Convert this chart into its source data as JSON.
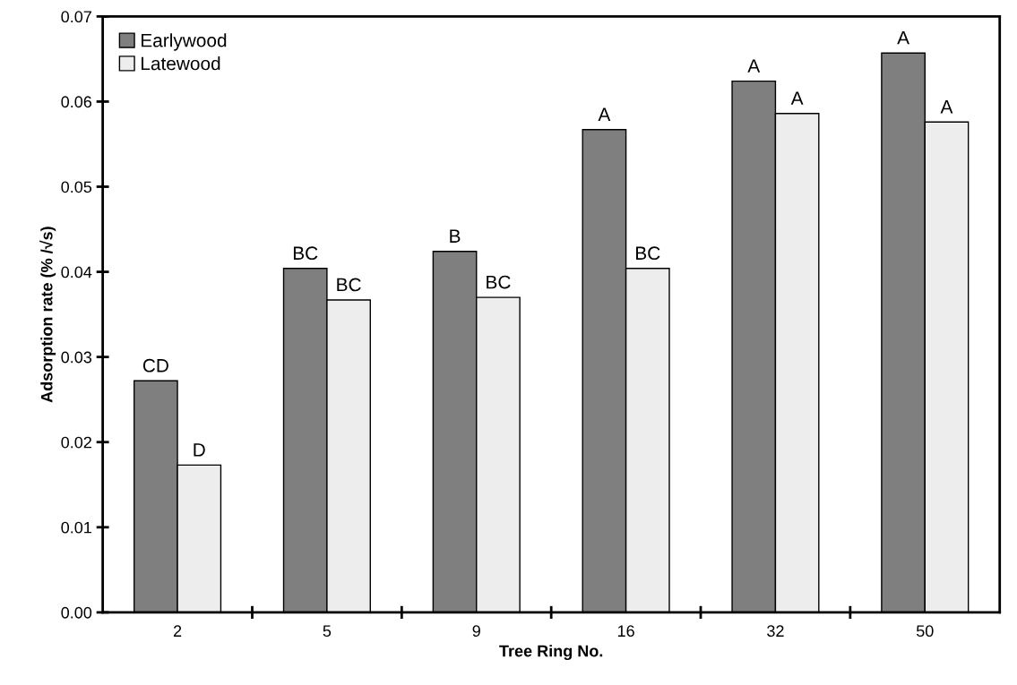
{
  "chart_data": {
    "type": "bar",
    "xlabel": "Tree Ring No.",
    "ylabel": "Adsorption rate (% /√s)",
    "categories": [
      "2",
      "5",
      "9",
      "16",
      "32",
      "50"
    ],
    "series": [
      {
        "name": "Earlywood",
        "color": "#7f7f7f",
        "values": [
          0.0272,
          0.0404,
          0.0424,
          0.0567,
          0.0624,
          0.0657
        ]
      },
      {
        "name": "Latewood",
        "color": "#ededed",
        "values": [
          0.0173,
          0.0367,
          0.037,
          0.0404,
          0.0586,
          0.0576
        ]
      }
    ],
    "ylim": [
      0,
      0.07
    ],
    "yticks": [
      {
        "value": 0,
        "label": "0.00"
      },
      {
        "value": 0.01,
        "label": "0.01"
      },
      {
        "value": 0.02,
        "label": "0.02"
      },
      {
        "value": 0.03,
        "label": "0.03"
      },
      {
        "value": 0.04,
        "label": "0.04"
      },
      {
        "value": 0.05,
        "label": "0.05"
      },
      {
        "value": 0.06,
        "label": "0.06"
      },
      {
        "value": 0.07,
        "label": "0.07"
      }
    ],
    "legend": "top left",
    "grid": false,
    "annotations": [
      {
        "text": "CD",
        "x": "2",
        "y": 0.0272
      },
      {
        "text": "D",
        "x": "2",
        "y": 0.0173
      },
      {
        "text": "BC",
        "x": "5",
        "y": 0.0404
      },
      {
        "text": "BC",
        "x": "5",
        "y": 0.0367
      },
      {
        "text": "B",
        "x": "9",
        "y": 0.0424
      },
      {
        "text": "BC",
        "x": "9",
        "y": 0.037
      },
      {
        "text": "A",
        "x": "16",
        "y": 0.0567
      },
      {
        "text": "BC",
        "x": "16",
        "y": 0.0404
      },
      {
        "text": "A",
        "x": "32",
        "y": 0.0624
      },
      {
        "text": "A",
        "x": "32",
        "y": 0.0586
      },
      {
        "text": "A",
        "x": "50",
        "y": 0.0657
      },
      {
        "text": "A",
        "x": "50",
        "y": 0.0576
      }
    ]
  }
}
